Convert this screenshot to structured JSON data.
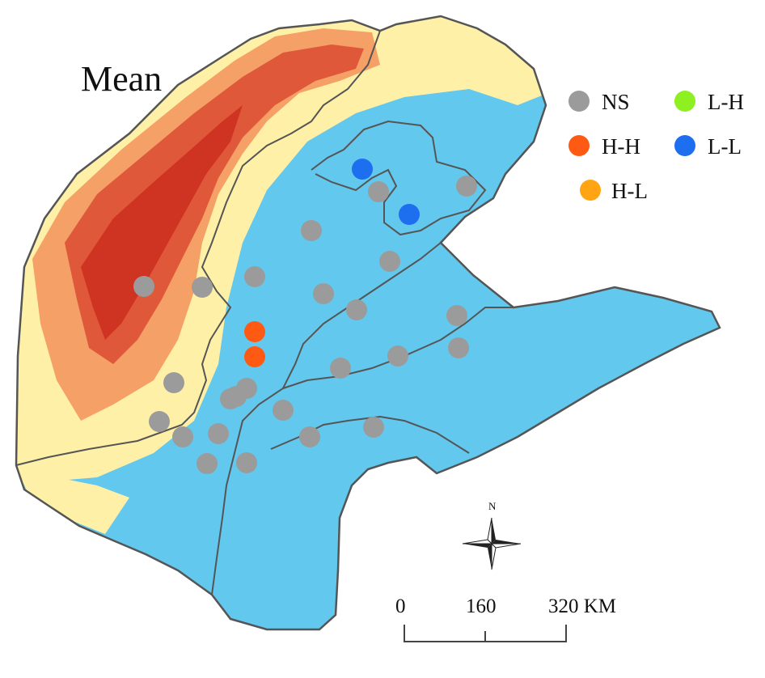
{
  "map": {
    "title": "Mean",
    "compass_label": "N",
    "colors": {
      "NS": "#9b9b9b",
      "H-H": "#ff5a14",
      "H-L": "#ffa514",
      "L-H": "#8ef020",
      "L-L": "#1e6ef0",
      "lowland": "#62c8ee",
      "upland_yellow": "#fff0a8",
      "upland_orange": "#f4a066",
      "upland_red": "#e0583a",
      "upland_darkred": "#cf3322",
      "border": "#555555"
    }
  },
  "legend": {
    "items": [
      {
        "label": "NS",
        "category": "NS"
      },
      {
        "label": "L-H",
        "category": "L-H"
      },
      {
        "label": "H-H",
        "category": "H-H"
      },
      {
        "label": "L-L",
        "category": "L-L"
      },
      {
        "label": "H-L",
        "category": "H-L"
      }
    ]
  },
  "scale_bar": {
    "ticks": [
      "0",
      "160",
      "320 KM"
    ]
  },
  "sites": [
    {
      "category": "L-L"
    },
    {
      "category": "L-L"
    },
    {
      "category": "H-H"
    },
    {
      "category": "H-H"
    },
    {
      "category": "NS"
    },
    {
      "category": "NS"
    },
    {
      "category": "NS"
    },
    {
      "category": "NS"
    },
    {
      "category": "NS"
    },
    {
      "category": "NS"
    },
    {
      "category": "NS"
    },
    {
      "category": "NS"
    },
    {
      "category": "NS"
    },
    {
      "category": "NS"
    },
    {
      "category": "NS"
    },
    {
      "category": "NS"
    },
    {
      "category": "NS"
    },
    {
      "category": "NS"
    },
    {
      "category": "NS"
    },
    {
      "category": "NS"
    },
    {
      "category": "NS"
    },
    {
      "category": "NS"
    },
    {
      "category": "NS"
    },
    {
      "category": "NS"
    },
    {
      "category": "NS"
    },
    {
      "category": "NS"
    },
    {
      "category": "NS"
    },
    {
      "category": "NS"
    },
    {
      "category": "NS"
    }
  ]
}
